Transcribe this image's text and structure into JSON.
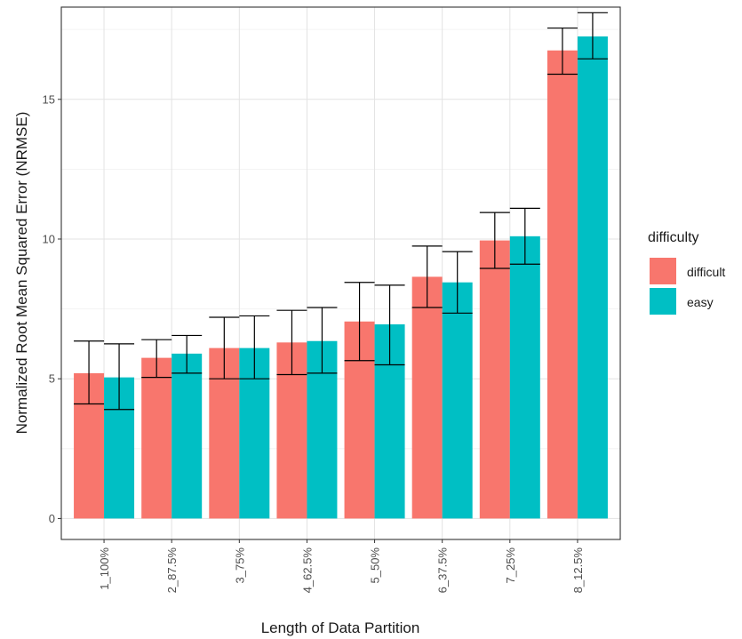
{
  "chart_data": {
    "type": "bar",
    "xlabel": "Length of Data Partition",
    "ylabel": "Normalized Root Mean Squared Error (NRMSE)",
    "ylim": [
      -0.75,
      18.3
    ],
    "yticks": [
      0,
      5,
      10,
      15
    ],
    "grid": true,
    "legend_title": "difficulty",
    "legend_position": "right",
    "categories": [
      "1_100%",
      "2_87.5%",
      "3_75%",
      "4_62.5%",
      "5_50%",
      "6_37.5%",
      "7_25%",
      "8_12.5%"
    ],
    "series": [
      {
        "name": "difficult",
        "color": "#F8766D",
        "values": [
          5.2,
          5.75,
          6.1,
          6.3,
          7.05,
          8.65,
          9.95,
          16.75
        ],
        "error_low": [
          4.1,
          5.05,
          5.0,
          5.15,
          5.65,
          7.55,
          8.95,
          15.9
        ],
        "error_high": [
          6.35,
          6.4,
          7.2,
          7.45,
          8.45,
          9.75,
          10.95,
          17.55
        ]
      },
      {
        "name": "easy",
        "color": "#00BFC4",
        "values": [
          5.05,
          5.9,
          6.1,
          6.35,
          6.95,
          8.45,
          10.1,
          17.25
        ],
        "error_low": [
          3.9,
          5.2,
          5.0,
          5.2,
          5.5,
          7.35,
          9.1,
          16.45
        ],
        "error_high": [
          6.25,
          6.55,
          7.25,
          7.55,
          8.35,
          9.55,
          11.1,
          18.1
        ]
      }
    ]
  }
}
